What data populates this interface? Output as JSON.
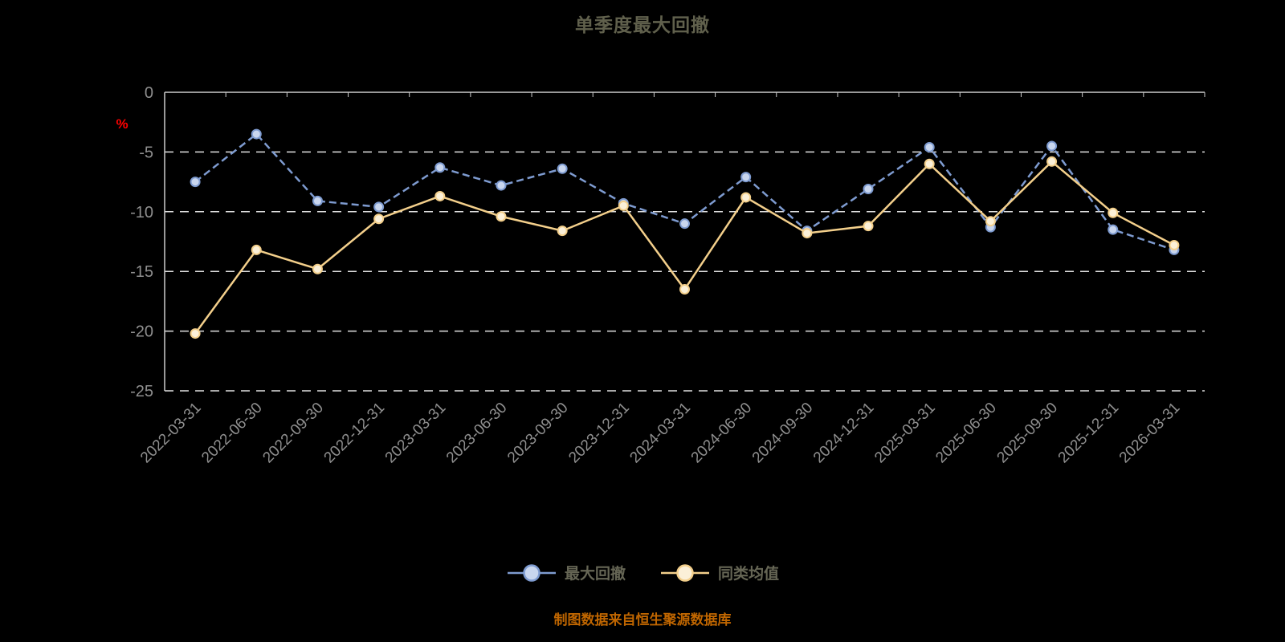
{
  "title": "单季度最大回撤",
  "source_note": "制图数据来自恒生聚源数据库",
  "y_axis": {
    "unit": "%"
  },
  "colors": {
    "background": "#000000",
    "title": "#60604c",
    "axis_line": "#cccccc",
    "grid_line": "#e0e0e0",
    "axis_label": "#8f8f8f",
    "unit_label": "#ff0000",
    "legend_label": "#666655",
    "source_note": "#c06600"
  },
  "chart_data": {
    "type": "line",
    "title": "单季度最大回撤",
    "categories": [
      "2022-03-31",
      "2022-06-30",
      "2022-09-30",
      "2022-12-31",
      "2023-03-31",
      "2023-06-30",
      "2023-09-30",
      "2023-12-31",
      "2024-03-31",
      "2024-06-30",
      "2024-09-30",
      "2024-12-31",
      "2025-03-31",
      "2025-06-30",
      "2025-09-30",
      "2025-12-31",
      "2026-03-31"
    ],
    "series": [
      {
        "name": "最大回撤",
        "color": "#7e9bd0",
        "marker_fill": "#c9d6ee",
        "line_style": "dashed",
        "values": [
          -7.5,
          -3.5,
          -9.1,
          -9.6,
          -6.3,
          -7.8,
          -6.4,
          -9.3,
          -11.0,
          -7.1,
          -11.6,
          -8.1,
          -4.6,
          -11.3,
          -4.5,
          -11.5,
          -13.2
        ]
      },
      {
        "name": "同类均值",
        "color": "#f3cf8b",
        "marker_fill": "#fbf0d8",
        "line_style": "solid",
        "values": [
          -20.2,
          -13.2,
          -14.8,
          -10.6,
          -8.7,
          -10.4,
          -11.6,
          -9.5,
          -16.5,
          -8.8,
          -11.8,
          -11.2,
          -6.0,
          -10.8,
          -5.8,
          -10.1,
          -12.8
        ]
      }
    ],
    "ylim": [
      -25,
      0
    ],
    "yticks": [
      0,
      -5,
      -10,
      -15,
      -20,
      -25
    ],
    "grid": true,
    "grid_style": "dashed",
    "legend_position": "bottom"
  }
}
